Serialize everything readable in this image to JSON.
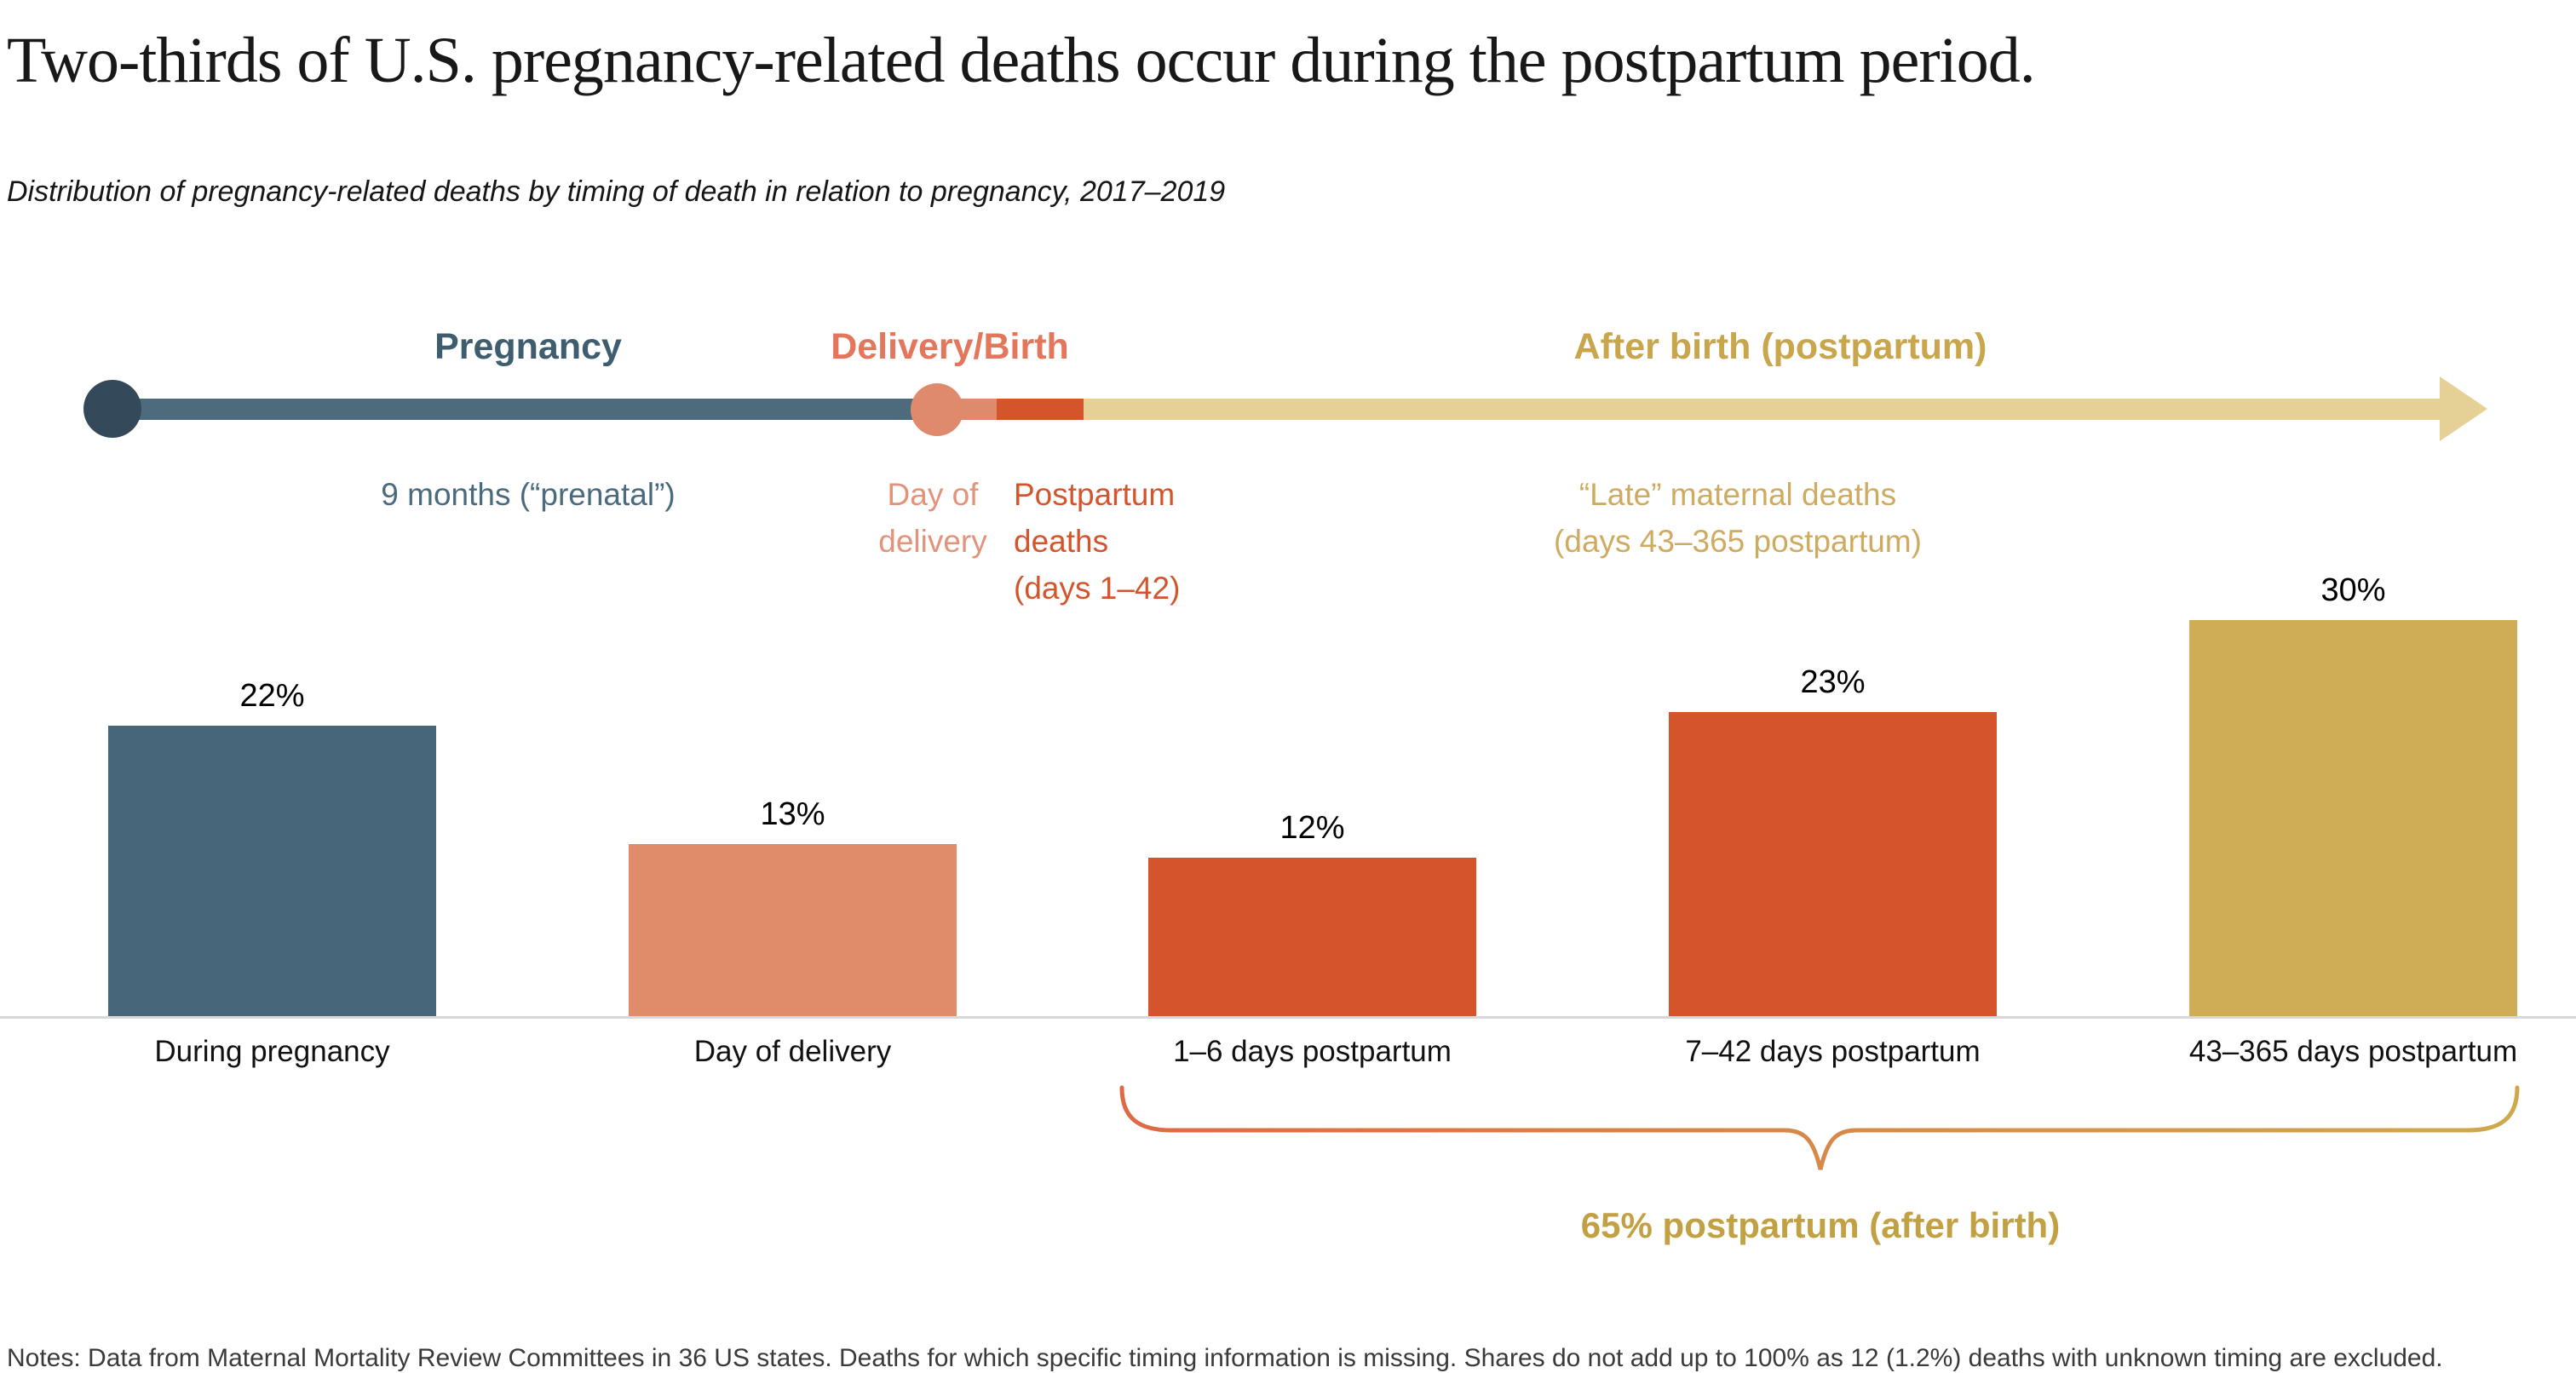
{
  "title": "Two-thirds of U.S. pregnancy-related deaths occur during the postpartum period.",
  "subtitle": "Distribution of pregnancy-related deaths by timing of death in relation to pregnancy, 2017–2019",
  "timeline": {
    "phases": [
      {
        "label": "Pregnancy",
        "sublabel": "9 months (“prenatal”)",
        "color": "#3e5d6f",
        "sublabel_color": "#4a6b7e"
      },
      {
        "label": "Delivery/Birth",
        "sublabel": "Day of\ndelivery",
        "color": "#e4765b",
        "sublabel_color": "#e2937a"
      },
      {
        "label": "After birth (postpartum)",
        "sublabel": "“Late” maternal deaths\n(days 43–365 postpartum)",
        "color": "#c9a54c",
        "sublabel_color": "#cfab61"
      }
    ],
    "postpartum_note": {
      "label": "Postpartum\ndeaths\n(days 1–42)",
      "color": "#d4552c"
    },
    "segment_colors": {
      "pregnancy_line": "#4d6b7d",
      "start_dot": "#34495a",
      "delivery_dot": "#e08a6d",
      "delivery_stub": "#e08a6d",
      "postpartum_1_42": "#d4552c",
      "late_postpartum": "#e5d095"
    }
  },
  "chart_data": {
    "type": "bar",
    "title": "Distribution of pregnancy-related deaths by timing of death in relation to pregnancy, 2017–2019",
    "categories": [
      "During pregnancy",
      "Day of delivery",
      "1–6 days postpartum",
      "7–42 days postpartum",
      "43–365 days postpartum"
    ],
    "values": [
      22,
      13,
      12,
      23,
      30
    ],
    "unit": "%",
    "bar_colors": [
      "#48667a",
      "#e08b69",
      "#d4552c",
      "#d4552c",
      "#cfac56"
    ],
    "xlabel": "",
    "ylabel": "",
    "ylim": [
      0,
      32
    ],
    "grid": false,
    "legend": "none",
    "annotation": "65% postpartum (after birth)"
  },
  "brace": {
    "label": "65% postpartum (after birth)",
    "gradient_left": "#dd6a44",
    "gradient_right": "#cfa84e"
  },
  "notes": "Notes: Data from Maternal Mortality Review Committees in 36 US states. Deaths for which specific timing information is missing. Shares do not add up to 100% as 12 (1.2%) deaths with unknown timing are excluded."
}
